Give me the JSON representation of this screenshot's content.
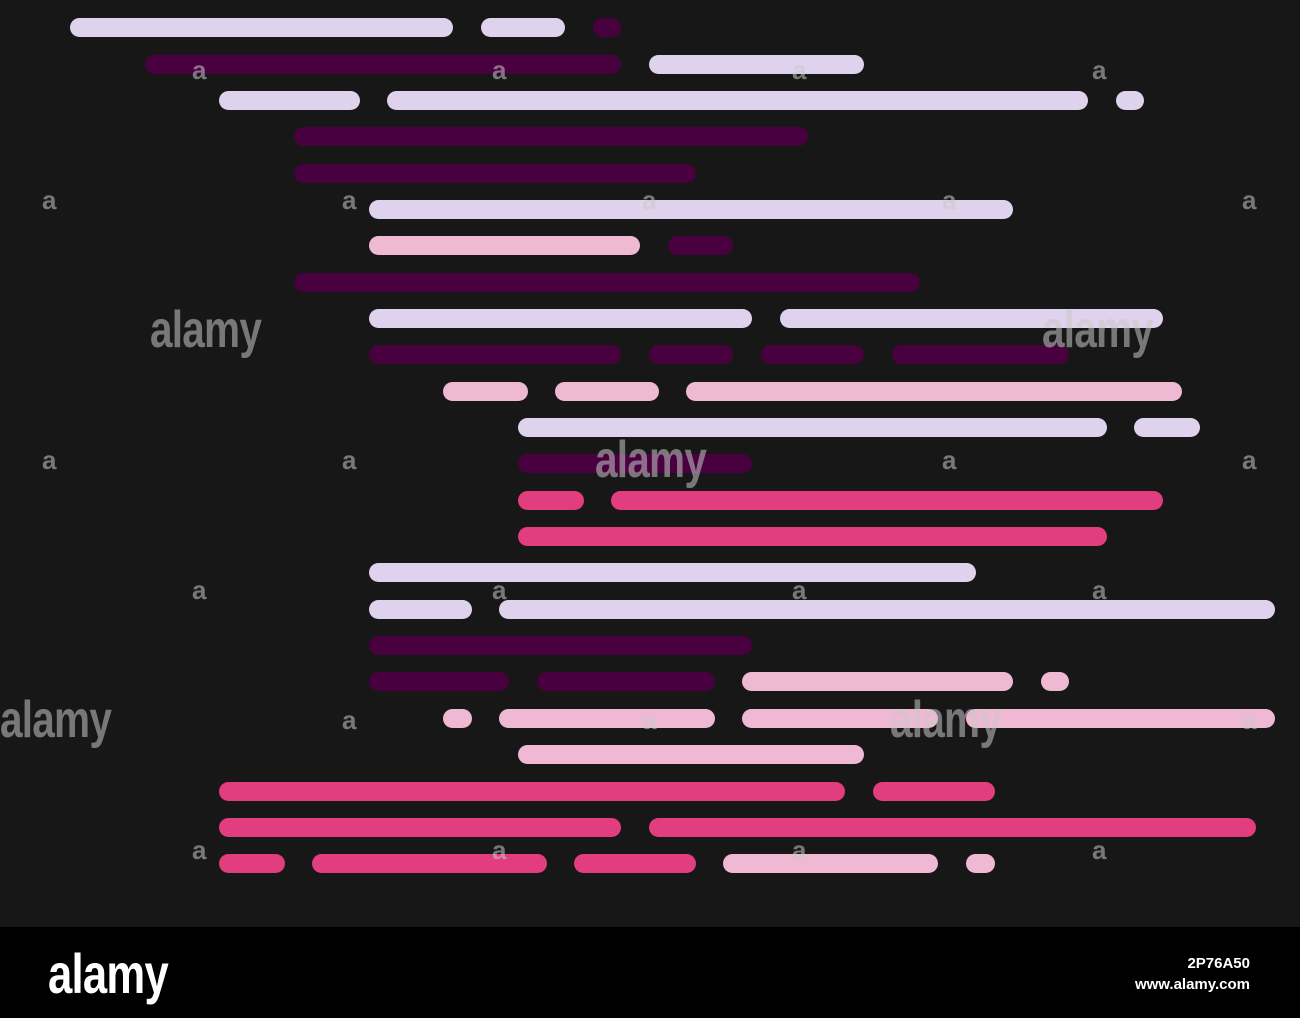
{
  "colors": {
    "background": "#171717",
    "lavender": "#dfd2ec",
    "dark_purple": "#48003f",
    "light_pink": "#f0b9d3",
    "pink": "#e13d7f",
    "footer": "#000000"
  },
  "watermark": {
    "word": "alamy",
    "letter": "a"
  },
  "footer": {
    "logo": "alamy",
    "image_id": "2P76A50",
    "url": "www.alamy.com"
  }
}
